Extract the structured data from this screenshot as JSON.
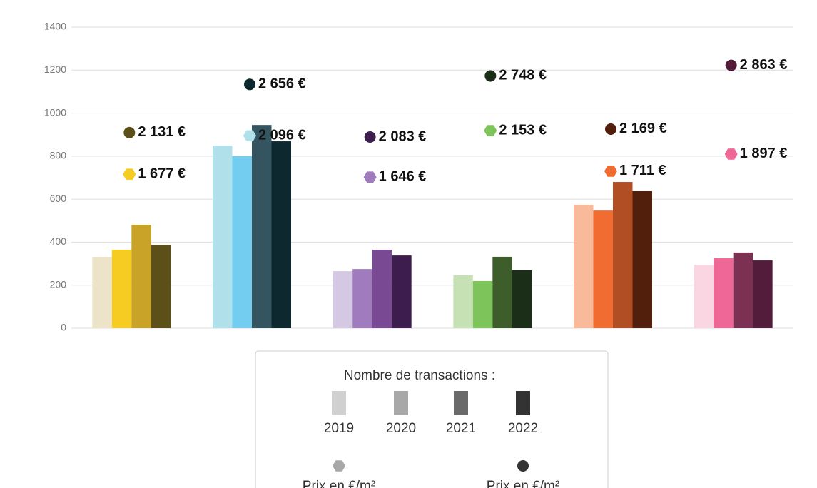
{
  "chart_data": {
    "type": "bar",
    "categories": [
      null,
      null,
      null,
      null,
      null,
      null
    ],
    "ylim": [
      0,
      1400
    ],
    "yticks": [
      0,
      200,
      400,
      600,
      800,
      1000,
      1200,
      1400
    ],
    "y2lim": [
      0,
      3280
    ],
    "grid": true,
    "legend_title": "Nombre de transactions :",
    "series": [
      {
        "name": "2019",
        "color": "#d0d0d0",
        "colors": [
          "#ede3c9",
          "#b0e0ea",
          "#d5c8e3",
          "#c6e2b4",
          "#f9b99b",
          "#f9d6e2"
        ],
        "values": [
          332,
          849,
          265,
          246,
          574,
          295
        ]
      },
      {
        "name": "2020",
        "color": "#a8a8a8",
        "colors": [
          "#f6cc22",
          "#72cdf0",
          "#a07bbd",
          "#7dc45a",
          "#f06c30",
          "#ef6797"
        ],
        "values": [
          365,
          800,
          275,
          219,
          547,
          325
        ]
      },
      {
        "name": "2021",
        "color": "#6a6a6a",
        "colors": [
          "#c9a228",
          "#34545f",
          "#7a4993",
          "#3d5e2b",
          "#b24e24",
          "#7c3153"
        ],
        "values": [
          481,
          945,
          365,
          332,
          680,
          352
        ]
      },
      {
        "name": "2022",
        "color": "#333333",
        "colors": [
          "#5d4f18",
          "#0e2830",
          "#3d1d4e",
          "#1b2e17",
          "#521f0d",
          "#521c3a"
        ],
        "values": [
          388,
          869,
          338,
          269,
          637,
          315
        ]
      }
    ],
    "price_series": [
      {
        "name": "Prix en €/m²",
        "marker": "hexagon",
        "axis": "y2",
        "color": "#a8a8a8",
        "colors": [
          "#f6cc22",
          "#b0e0ea",
          "#a07bbd",
          "#7dc45a",
          "#f06c30",
          "#ef6797"
        ],
        "values": [
          1677,
          2096,
          1646,
          2153,
          1711,
          1897
        ],
        "value_labels": [
          "1 677 €",
          "2 096 €",
          "1 646 €",
          "2 153 €",
          "1 711 €",
          "1 897 €"
        ]
      },
      {
        "name": "Prix en €/m²",
        "marker": "circle",
        "axis": "y2",
        "color": "#333333",
        "colors": [
          "#5d4f18",
          "#0e2830",
          "#3d1d4e",
          "#1b2e17",
          "#521f0d",
          "#521c3a"
        ],
        "values": [
          2131,
          2656,
          2083,
          2748,
          2169,
          2863
        ],
        "value_labels": [
          "2 131 €",
          "2 656 €",
          "2 083 €",
          "2 748 €",
          "2 169 €",
          "2 863 €"
        ]
      }
    ]
  }
}
